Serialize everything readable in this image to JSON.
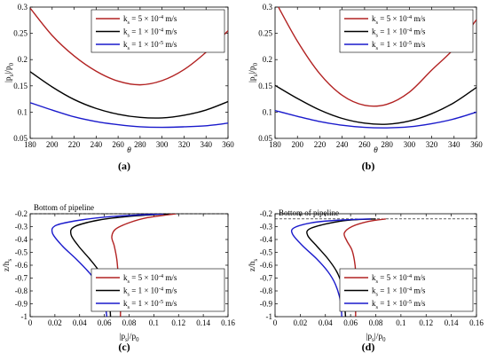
{
  "chart_data": [
    {
      "type": "line",
      "panel_label": "(a)",
      "xlabel": "θ",
      "ylabel": "|p_s|/p_0",
      "xlim": [
        180,
        360
      ],
      "ylim": [
        0.05,
        0.3
      ],
      "xticks": [
        180,
        200,
        220,
        240,
        260,
        280,
        300,
        320,
        340,
        360
      ],
      "yticks": [
        0.05,
        0.1,
        0.15,
        0.2,
        0.25,
        0.3
      ],
      "legend_position": "top-right",
      "series": [
        {
          "name": "k_s = 5 × 10^-4 m/s",
          "color": "#b22222",
          "x": [
            180,
            200,
            220,
            240,
            260,
            280,
            300,
            320,
            340,
            360
          ],
          "y": [
            0.298,
            0.246,
            0.207,
            0.178,
            0.159,
            0.152,
            0.16,
            0.181,
            0.214,
            0.255
          ]
        },
        {
          "name": "k_s = 1 × 10^-4 m/s",
          "color": "#000000",
          "x": [
            180,
            200,
            220,
            240,
            260,
            280,
            300,
            320,
            340,
            360
          ],
          "y": [
            0.177,
            0.148,
            0.124,
            0.107,
            0.096,
            0.09,
            0.089,
            0.094,
            0.104,
            0.12
          ]
        },
        {
          "name": "k_s = 1 × 10^-5 m/s",
          "color": "#1a1acc",
          "x": [
            180,
            200,
            220,
            240,
            260,
            280,
            300,
            320,
            340,
            360
          ],
          "y": [
            0.118,
            0.104,
            0.091,
            0.082,
            0.076,
            0.072,
            0.071,
            0.072,
            0.074,
            0.079
          ]
        }
      ]
    },
    {
      "type": "line",
      "panel_label": "(b)",
      "xlabel": "θ",
      "ylabel": "|p_s|/p_0",
      "xlim": [
        180,
        360
      ],
      "ylim": [
        0.05,
        0.3
      ],
      "xticks": [
        180,
        200,
        220,
        240,
        260,
        280,
        300,
        320,
        340,
        360
      ],
      "yticks": [
        0.05,
        0.1,
        0.15,
        0.2,
        0.25,
        0.3
      ],
      "legend_position": "top-right",
      "series": [
        {
          "name": "k_s = 5 × 10^-4 m/s",
          "color": "#b22222",
          "x": [
            180,
            200,
            220,
            240,
            260,
            280,
            300,
            320,
            340,
            360
          ],
          "y": [
            0.312,
            0.235,
            0.173,
            0.132,
            0.113,
            0.115,
            0.138,
            0.18,
            0.221,
            0.276
          ]
        },
        {
          "name": "k_s = 1 × 10^-4 m/s",
          "color": "#000000",
          "x": [
            180,
            200,
            220,
            240,
            260,
            280,
            300,
            320,
            340,
            360
          ],
          "y": [
            0.151,
            0.126,
            0.104,
            0.088,
            0.079,
            0.077,
            0.083,
            0.097,
            0.118,
            0.147
          ]
        },
        {
          "name": "k_s = 1 × 10^-5 m/s",
          "color": "#1a1acc",
          "x": [
            180,
            200,
            220,
            240,
            260,
            280,
            300,
            320,
            340,
            360
          ],
          "y": [
            0.103,
            0.092,
            0.082,
            0.075,
            0.071,
            0.07,
            0.072,
            0.078,
            0.087,
            0.1
          ]
        }
      ]
    },
    {
      "type": "line",
      "panel_label": "(c)",
      "xlabel": "|p_s|/p_0",
      "ylabel": "z/h_s",
      "xlim": [
        0,
        0.16
      ],
      "ylim": [
        -1,
        -0.2
      ],
      "xticks": [
        0,
        0.02,
        0.04,
        0.06,
        0.08,
        0.1,
        0.12,
        0.14,
        0.16
      ],
      "yticks": [
        -1,
        -0.9,
        -0.8,
        -0.7,
        -0.6,
        -0.5,
        -0.4,
        -0.3,
        -0.2
      ],
      "legend_position": "lower-right",
      "annotation": {
        "text": "Bottom of pipeline",
        "y": -0.2
      },
      "series": [
        {
          "name": "k_s = 5 × 10^-4 m/s",
          "color": "#b22222",
          "x": [
            0.118,
            0.095,
            0.08,
            0.069,
            0.066,
            0.068,
            0.07,
            0.071,
            0.072,
            0.073,
            0.073
          ],
          "y": [
            -0.2,
            -0.23,
            -0.27,
            -0.32,
            -0.38,
            -0.45,
            -0.55,
            -0.65,
            -0.75,
            -0.88,
            -1.0
          ]
        },
        {
          "name": "k_s = 1 × 10^-4 m/s",
          "color": "#000000",
          "x": [
            0.112,
            0.08,
            0.055,
            0.036,
            0.033,
            0.039,
            0.048,
            0.056,
            0.061,
            0.064,
            0.065
          ],
          "y": [
            -0.2,
            -0.22,
            -0.25,
            -0.3,
            -0.36,
            -0.45,
            -0.55,
            -0.65,
            -0.75,
            -0.88,
            -1.0
          ]
        },
        {
          "name": "k_s = 1 × 10^-5 m/s",
          "color": "#1a1acc",
          "x": [
            0.108,
            0.068,
            0.04,
            0.021,
            0.018,
            0.026,
            0.037,
            0.047,
            0.055,
            0.06,
            0.062
          ],
          "y": [
            -0.2,
            -0.22,
            -0.25,
            -0.29,
            -0.35,
            -0.45,
            -0.55,
            -0.65,
            -0.75,
            -0.88,
            -1.0
          ]
        }
      ]
    },
    {
      "type": "line",
      "panel_label": "(d)",
      "xlabel": "|p_s|/p_0",
      "ylabel": "z/h_s",
      "xlim": [
        0,
        0.16
      ],
      "ylim": [
        -1,
        -0.2
      ],
      "xticks": [
        0,
        0.02,
        0.04,
        0.06,
        0.08,
        0.1,
        0.12,
        0.14,
        0.16
      ],
      "yticks": [
        -1,
        -0.9,
        -0.8,
        -0.7,
        -0.6,
        -0.5,
        -0.4,
        -0.3,
        -0.2
      ],
      "legend_position": "lower-right",
      "annotation": {
        "text": "Bottom of pipeline",
        "y": -0.24
      },
      "series": [
        {
          "name": "k_s = 5 × 10^-4 m/s",
          "color": "#b22222",
          "x": [
            0.088,
            0.074,
            0.061,
            0.055,
            0.057,
            0.061,
            0.063,
            0.064,
            0.064,
            0.064,
            0.064
          ],
          "y": [
            -0.24,
            -0.26,
            -0.3,
            -0.35,
            -0.41,
            -0.48,
            -0.56,
            -0.65,
            -0.75,
            -0.88,
            -1.0
          ]
        },
        {
          "name": "k_s = 1 × 10^-4 m/s",
          "color": "#000000",
          "x": [
            0.08,
            0.058,
            0.04,
            0.027,
            0.026,
            0.033,
            0.042,
            0.049,
            0.053,
            0.055,
            0.056
          ],
          "y": [
            -0.24,
            -0.25,
            -0.28,
            -0.32,
            -0.37,
            -0.45,
            -0.55,
            -0.65,
            -0.75,
            -0.88,
            -1.0
          ]
        },
        {
          "name": "k_s = 1 × 10^-5 m/s",
          "color": "#1a1acc",
          "x": [
            0.076,
            0.05,
            0.029,
            0.015,
            0.014,
            0.022,
            0.033,
            0.042,
            0.048,
            0.052,
            0.053
          ],
          "y": [
            -0.24,
            -0.25,
            -0.27,
            -0.31,
            -0.36,
            -0.45,
            -0.55,
            -0.65,
            -0.75,
            -0.88,
            -1.0
          ]
        }
      ]
    }
  ]
}
